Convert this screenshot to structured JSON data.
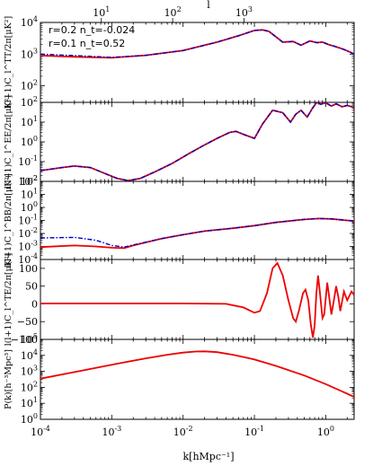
{
  "top_axis": {
    "label": "l",
    "tick_labels": [
      {
        "l": 10,
        "label": "10",
        "sup": "1"
      },
      {
        "l": 100,
        "label": "10",
        "sup": "2"
      },
      {
        "l": 1000,
        "label": "10",
        "sup": "3"
      }
    ]
  },
  "x_axis": {
    "label": "k[hMpc⁻¹]",
    "tick_labels": [
      {
        "x": 0.0001,
        "label": "10",
        "sup": "-4"
      },
      {
        "x": 0.001,
        "label": "10",
        "sup": "-3"
      },
      {
        "x": 0.01,
        "label": "10",
        "sup": "-2"
      },
      {
        "x": 0.1,
        "label": "10",
        "sup": "-1"
      },
      {
        "x": 1,
        "label": "10",
        "sup": "0"
      }
    ]
  },
  "legend": [
    {
      "label": "r=0.2  n_t=-0.024",
      "color": "#0000cc",
      "style": "dashdot"
    },
    {
      "label": "r=0.1  n_t=0.52",
      "color": "#ee0000",
      "style": "solid"
    }
  ],
  "chart_data": [
    {
      "type": "line",
      "scale": "log",
      "ylabel": "l(l+1)C_l^TT/2π[μK²]",
      "ylim": [
        30,
        10000
      ],
      "yticks": [
        {
          "v": 100,
          "e": "2"
        },
        {
          "v": 1000,
          "e": "3"
        },
        {
          "v": 10000,
          "e": "4"
        }
      ],
      "series": [
        {
          "color": "#ee0000",
          "style": "solid",
          "points": [
            [
              0.0001,
              900
            ],
            [
              0.0003,
              820
            ],
            [
              0.001,
              770
            ],
            [
              0.003,
              920
            ],
            [
              0.01,
              1300
            ],
            [
              0.03,
              2400
            ],
            [
              0.06,
              3800
            ],
            [
              0.1,
              5600
            ],
            [
              0.13,
              5800
            ],
            [
              0.16,
              5200
            ],
            [
              0.25,
              2400
            ],
            [
              0.35,
              2500
            ],
            [
              0.45,
              1900
            ],
            [
              0.6,
              2600
            ],
            [
              0.75,
              2300
            ],
            [
              0.9,
              2400
            ],
            [
              1.1,
              2000
            ],
            [
              1.4,
              1700
            ],
            [
              1.8,
              1400
            ],
            [
              2.2,
              1150
            ],
            [
              2.5,
              1000
            ]
          ]
        },
        {
          "color": "#0000cc",
          "style": "dashdot",
          "points": [
            [
              0.0001,
              1000
            ],
            [
              0.0003,
              900
            ],
            [
              0.001,
              790
            ],
            [
              0.003,
              920
            ],
            [
              0.01,
              1300
            ],
            [
              0.03,
              2400
            ],
            [
              0.06,
              3800
            ],
            [
              0.1,
              5600
            ],
            [
              0.13,
              5800
            ],
            [
              0.16,
              5200
            ],
            [
              0.25,
              2400
            ],
            [
              0.35,
              2500
            ],
            [
              0.45,
              1900
            ],
            [
              0.6,
              2600
            ],
            [
              0.75,
              2300
            ],
            [
              0.9,
              2400
            ],
            [
              1.1,
              2000
            ],
            [
              1.4,
              1700
            ],
            [
              1.8,
              1400
            ],
            [
              2.2,
              1150
            ],
            [
              2.5,
              1000
            ]
          ]
        }
      ]
    },
    {
      "type": "line",
      "scale": "log",
      "ylabel": "l(l+1)C_l^EE/2π[μK²]",
      "ylim": [
        0.01,
        100
      ],
      "yticks": [
        {
          "v": 0.01,
          "e": "-2"
        },
        {
          "v": 0.1,
          "e": "-1"
        },
        {
          "v": 1,
          "e": "0"
        },
        {
          "v": 10,
          "e": "1"
        },
        {
          "v": 100,
          "e": "2"
        }
      ],
      "series": [
        {
          "color": "#ee0000",
          "style": "solid",
          "points": [
            [
              0.0001,
              0.035
            ],
            [
              0.0002,
              0.05
            ],
            [
              0.0003,
              0.06
            ],
            [
              0.0005,
              0.05
            ],
            [
              0.0008,
              0.025
            ],
            [
              0.0012,
              0.014
            ],
            [
              0.0017,
              0.011
            ],
            [
              0.0025,
              0.014
            ],
            [
              0.004,
              0.03
            ],
            [
              0.007,
              0.08
            ],
            [
              0.012,
              0.25
            ],
            [
              0.02,
              0.7
            ],
            [
              0.03,
              1.5
            ],
            [
              0.045,
              3
            ],
            [
              0.055,
              3.4
            ],
            [
              0.07,
              2.4
            ],
            [
              0.1,
              1.5
            ],
            [
              0.13,
              8
            ],
            [
              0.18,
              40
            ],
            [
              0.25,
              30
            ],
            [
              0.32,
              10
            ],
            [
              0.38,
              25
            ],
            [
              0.45,
              40
            ],
            [
              0.55,
              18
            ],
            [
              0.65,
              50
            ],
            [
              0.75,
              100
            ],
            [
              0.85,
              80
            ],
            [
              1,
              95
            ],
            [
              1.2,
              65
            ],
            [
              1.4,
              85
            ],
            [
              1.7,
              60
            ],
            [
              2,
              70
            ],
            [
              2.5,
              55
            ]
          ]
        },
        {
          "color": "#0000cc",
          "style": "dashdot",
          "points": [
            [
              0.0001,
              0.035
            ],
            [
              0.0002,
              0.05
            ],
            [
              0.0003,
              0.06
            ],
            [
              0.0005,
              0.05
            ],
            [
              0.0008,
              0.025
            ],
            [
              0.0012,
              0.014
            ],
            [
              0.0017,
              0.011
            ],
            [
              0.0025,
              0.014
            ],
            [
              0.004,
              0.03
            ],
            [
              0.007,
              0.08
            ],
            [
              0.012,
              0.25
            ],
            [
              0.02,
              0.7
            ],
            [
              0.03,
              1.5
            ],
            [
              0.045,
              3
            ],
            [
              0.055,
              3.4
            ],
            [
              0.07,
              2.4
            ],
            [
              0.1,
              1.5
            ],
            [
              0.13,
              8
            ],
            [
              0.18,
              40
            ],
            [
              0.25,
              30
            ],
            [
              0.32,
              10
            ],
            [
              0.38,
              25
            ],
            [
              0.45,
              40
            ],
            [
              0.55,
              18
            ],
            [
              0.65,
              50
            ],
            [
              0.75,
              100
            ],
            [
              0.85,
              80
            ],
            [
              1,
              95
            ],
            [
              1.2,
              65
            ],
            [
              1.4,
              85
            ],
            [
              1.7,
              60
            ],
            [
              2,
              70
            ],
            [
              2.5,
              55
            ]
          ]
        }
      ]
    },
    {
      "type": "line",
      "scale": "log",
      "ylabel": "l(l+1)C_l^BB/2π[μK²]",
      "ylim": [
        0.0001,
        100
      ],
      "yticks": [
        {
          "v": 0.0001,
          "e": "-4"
        },
        {
          "v": 0.001,
          "e": "-3"
        },
        {
          "v": 0.01,
          "e": "-2"
        },
        {
          "v": 0.1,
          "e": "-1"
        },
        {
          "v": 1,
          "e": "0"
        },
        {
          "v": 10,
          "e": "1"
        },
        {
          "v": 100,
          "e": "2"
        }
      ],
      "series": [
        {
          "color": "#ee0000",
          "style": "solid",
          "points": [
            [
              0.0001,
              0.0009
            ],
            [
              0.0003,
              0.0012
            ],
            [
              0.0006,
              0.001
            ],
            [
              0.001,
              0.0008
            ],
            [
              0.0015,
              0.00075
            ],
            [
              0.002,
              0.0012
            ],
            [
              0.005,
              0.004
            ],
            [
              0.01,
              0.008
            ],
            [
              0.02,
              0.015
            ],
            [
              0.05,
              0.025
            ],
            [
              0.1,
              0.04
            ],
            [
              0.2,
              0.07
            ],
            [
              0.5,
              0.12
            ],
            [
              0.8,
              0.14
            ],
            [
              1.2,
              0.13
            ],
            [
              2,
              0.1
            ],
            [
              2.5,
              0.09
            ]
          ]
        },
        {
          "color": "#0000cc",
          "style": "dashdot",
          "points": [
            [
              0.0001,
              0.0045
            ],
            [
              0.0003,
              0.005
            ],
            [
              0.0006,
              0.003
            ],
            [
              0.001,
              0.0012
            ],
            [
              0.0015,
              0.0009
            ],
            [
              0.002,
              0.0013
            ],
            [
              0.005,
              0.004
            ],
            [
              0.01,
              0.008
            ],
            [
              0.02,
              0.015
            ],
            [
              0.05,
              0.025
            ],
            [
              0.1,
              0.04
            ],
            [
              0.2,
              0.07
            ],
            [
              0.5,
              0.12
            ],
            [
              0.8,
              0.14
            ],
            [
              1.2,
              0.13
            ],
            [
              2,
              0.1
            ],
            [
              2.5,
              0.09
            ]
          ]
        }
      ]
    },
    {
      "type": "line",
      "scale": "linear",
      "ylabel": "l(l+1)C_l^TE/2π[μK²]",
      "ylim": [
        -100,
        125
      ],
      "yticks": [
        {
          "v": -100,
          "t": "−100"
        },
        {
          "v": -50,
          "t": "−50"
        },
        {
          "v": 0,
          "t": "0"
        },
        {
          "v": 50,
          "t": "50"
        },
        {
          "v": 100,
          "t": "100"
        }
      ],
      "series": [
        {
          "color": "#ee0000",
          "style": "solid",
          "points": [
            [
              0.0001,
              1
            ],
            [
              0.001,
              1
            ],
            [
              0.01,
              1
            ],
            [
              0.04,
              0
            ],
            [
              0.07,
              -10
            ],
            [
              0.1,
              -25
            ],
            [
              0.12,
              -20
            ],
            [
              0.15,
              30
            ],
            [
              0.18,
              100
            ],
            [
              0.21,
              115
            ],
            [
              0.25,
              80
            ],
            [
              0.3,
              10
            ],
            [
              0.35,
              -40
            ],
            [
              0.38,
              -50
            ],
            [
              0.42,
              -20
            ],
            [
              0.48,
              30
            ],
            [
              0.52,
              40
            ],
            [
              0.57,
              10
            ],
            [
              0.62,
              -60
            ],
            [
              0.66,
              -95
            ],
            [
              0.7,
              -60
            ],
            [
              0.74,
              30
            ],
            [
              0.78,
              80
            ],
            [
              0.82,
              40
            ],
            [
              0.9,
              -40
            ],
            [
              0.95,
              -30
            ],
            [
              1,
              15
            ],
            [
              1.05,
              60
            ],
            [
              1.1,
              30
            ],
            [
              1.2,
              -30
            ],
            [
              1.3,
              10
            ],
            [
              1.4,
              50
            ],
            [
              1.5,
              20
            ],
            [
              1.6,
              -20
            ],
            [
              1.8,
              35
            ],
            [
              2,
              10
            ],
            [
              2.3,
              35
            ],
            [
              2.5,
              25
            ]
          ]
        }
      ]
    },
    {
      "type": "line",
      "scale": "log",
      "ylabel": "P(k)[h⁻³Mpc³]",
      "ylim": [
        1,
        100000
      ],
      "yticks": [
        {
          "v": 1,
          "e": "0"
        },
        {
          "v": 10,
          "e": "1"
        },
        {
          "v": 100,
          "e": "2"
        },
        {
          "v": 1000,
          "e": "3"
        },
        {
          "v": 10000,
          "e": "4"
        },
        {
          "v": 100000,
          "e": "5"
        }
      ],
      "series": [
        {
          "color": "#ee0000",
          "style": "solid",
          "points": [
            [
              0.0001,
              350
            ],
            [
              0.0003,
              900
            ],
            [
              0.001,
              2600
            ],
            [
              0.003,
              6500
            ],
            [
              0.006,
              11000
            ],
            [
              0.01,
              15000
            ],
            [
              0.015,
              17500
            ],
            [
              0.02,
              18000
            ],
            [
              0.03,
              16000
            ],
            [
              0.05,
              11000
            ],
            [
              0.08,
              7000
            ],
            [
              0.1,
              5500
            ],
            [
              0.2,
              2200
            ],
            [
              0.5,
              550
            ],
            [
              1,
              160
            ],
            [
              2,
              40
            ],
            [
              2.5,
              25
            ]
          ]
        }
      ]
    }
  ]
}
